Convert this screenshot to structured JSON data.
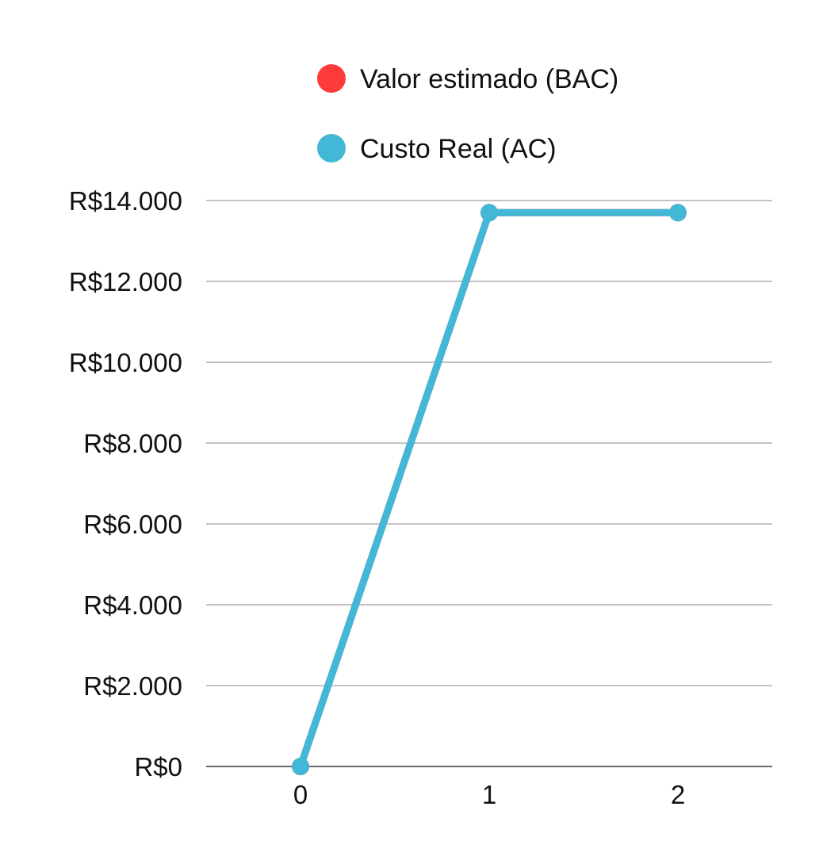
{
  "chart_data": {
    "type": "line",
    "x": [
      0,
      1,
      2
    ],
    "x_tick_labels": [
      "0",
      "1",
      "2"
    ],
    "y_tick_labels": [
      "R$0",
      "R$2.000",
      "R$4.000",
      "R$6.000",
      "R$8.000",
      "R$10.000",
      "R$12.000",
      "R$14.000"
    ],
    "y_ticks": [
      0,
      2000,
      4000,
      6000,
      8000,
      10000,
      12000,
      14000
    ],
    "ylim": [
      0,
      14000
    ],
    "xlim": [
      -0.5,
      2.5
    ],
    "grid": true,
    "legend_position": "top",
    "legend": [
      {
        "label": "Valor estimado (BAC)",
        "color": "#ff3a3a"
      },
      {
        "label": "Custo Real (AC)",
        "color": "#43b8d6"
      }
    ],
    "series": [
      {
        "name": "Valor estimado (BAC)",
        "color": "#ff3a3a",
        "values": [
          0,
          13700,
          13700
        ]
      },
      {
        "name": "Custo Real (AC)",
        "color": "#43b8d6",
        "values": [
          0,
          13700,
          13700
        ]
      }
    ],
    "title": "",
    "xlabel": "",
    "ylabel": ""
  }
}
